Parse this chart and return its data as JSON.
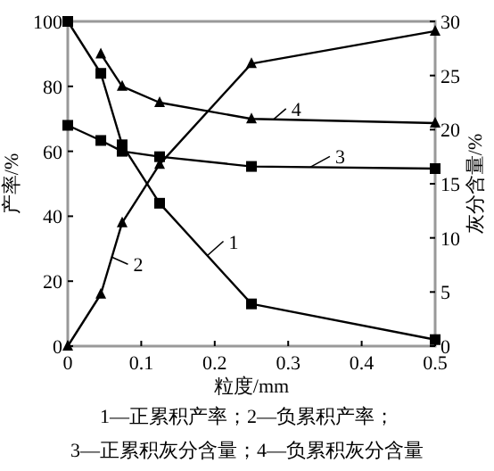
{
  "chart_data": {
    "type": "line",
    "xlabel": "粒度/mm",
    "ylabel": "产率/%",
    "y2label": "灰分含量/%",
    "xlim": [
      0,
      0.5
    ],
    "xticks": [
      0,
      0.1,
      0.2,
      0.3,
      0.4,
      0.5
    ],
    "ylim": [
      0,
      100
    ],
    "yticks": [
      0,
      20,
      40,
      60,
      80,
      100
    ],
    "y2lim": [
      0,
      30
    ],
    "y2ticks": [
      0,
      5,
      10,
      15,
      20,
      25,
      30
    ],
    "grid": false,
    "legend": "center",
    "line_style": "solid",
    "series": [
      {
        "name": "1",
        "color": "#000000",
        "marker": "square",
        "x": [
          0,
          0.045,
          0.074,
          0.125,
          0.25,
          0.5
        ],
        "values": [
          100,
          84,
          62,
          44,
          13,
          2
        ]
      },
      {
        "name": "2",
        "color": "#000000",
        "marker": "triangle",
        "x": [
          0,
          0.045,
          0.074,
          0.125,
          0.25,
          0.5
        ],
        "values": [
          0,
          16,
          38,
          56,
          87,
          97
        ]
      },
      {
        "name": "3",
        "color": "#000000",
        "marker": "square",
        "axis": "y2",
        "x": [
          0,
          0.045,
          0.074,
          0.125,
          0.25,
          0.5
        ],
        "values": [
          20.4,
          19,
          18,
          17.5,
          16.6,
          16.4
        ]
      },
      {
        "name": "4",
        "color": "#000000",
        "marker": "triangle",
        "axis": "y2",
        "x": [
          0.045,
          0.074,
          0.125,
          0.25,
          0.5
        ],
        "values": [
          27,
          24,
          22.5,
          21,
          20.6
        ]
      }
    ],
    "annotations": [
      "1—正累积产率；2—负累积产率；",
      "3—正累积灰分含量；4—负累积灰分含量"
    ]
  }
}
